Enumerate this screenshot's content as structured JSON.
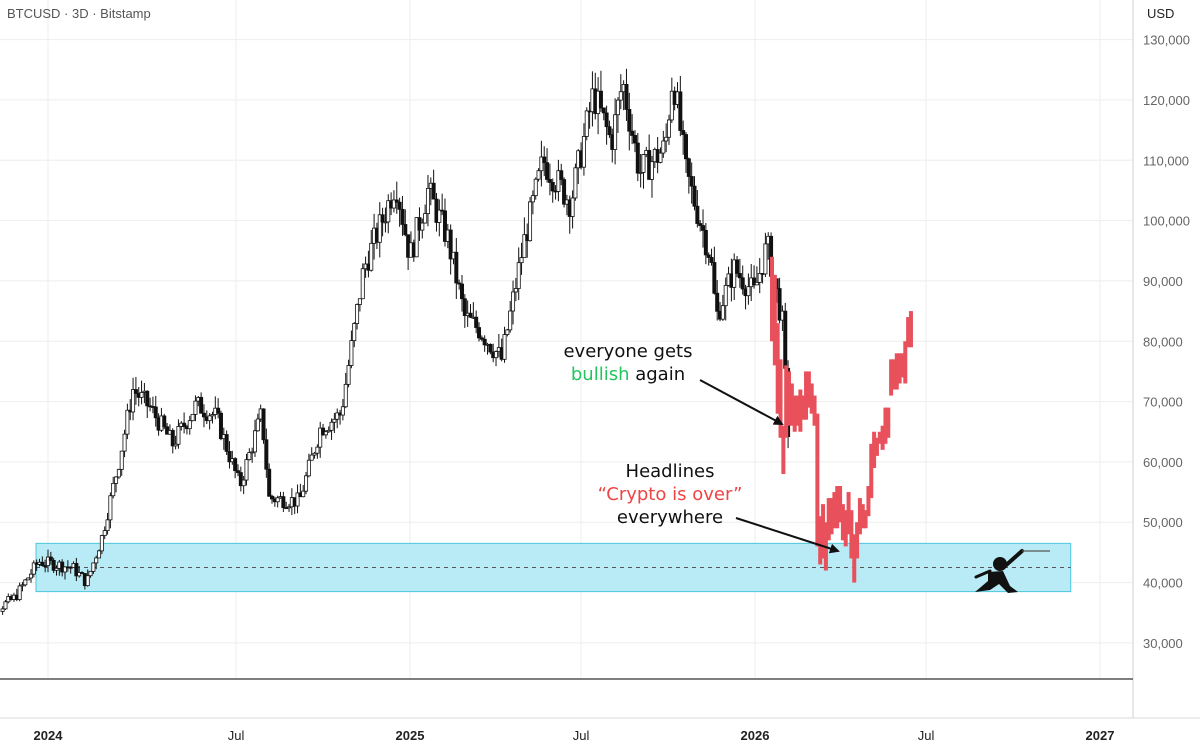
{
  "header": {
    "symbol": "BTCUSD · 3D · Bitstamp",
    "currency": "USD"
  },
  "annotations": {
    "bullish": {
      "line1": "everyone gets",
      "highlight": "bullish",
      "rest": " again"
    },
    "headlines": {
      "line1": "Headlines",
      "highlight": "“Crypto is over”",
      "line3": "everywhere"
    }
  },
  "colors": {
    "historical": "#111111",
    "projected": "#e8505b",
    "zone_fill": "#b8ebf5",
    "zone_border": "#4cc8dc"
  },
  "chart_data": {
    "type": "bar",
    "title": "",
    "xlabel": "",
    "ylabel": "",
    "ylim": [
      24000,
      133000
    ],
    "y_ticks": [
      30000,
      40000,
      50000,
      60000,
      70000,
      80000,
      90000,
      100000,
      110000,
      120000,
      130000
    ],
    "y_tick_labels": [
      "30,000",
      "40,000",
      "50,000",
      "60,000",
      "70,000",
      "80,000",
      "90,000",
      "100,000",
      "110,000",
      "120,000",
      "130,000"
    ],
    "x_ticks": [
      "2023-12-15",
      "2024-07-01",
      "2025-01-01",
      "2025-07-01",
      "2026-01-01",
      "2026-07-01",
      "2027-01-01"
    ],
    "x_tick_labels": [
      "2024",
      "Jul",
      "2025",
      "Jul",
      "2026",
      "Jul",
      "2027"
    ],
    "support_zone": {
      "from": "2023-12-01",
      "to": "2026-12-01",
      "low": 38500,
      "high": 46500,
      "mid": 42500
    },
    "series": [
      {
        "role": "historical",
        "price_path": [
          [
            "2023-10-01",
            33500
          ],
          [
            "2023-11-10",
            37500
          ],
          [
            "2023-12-05",
            43500
          ],
          [
            "2024-01-10",
            42500
          ],
          [
            "2024-01-25",
            40000
          ],
          [
            "2024-02-10",
            47500
          ],
          [
            "2024-02-28",
            60000
          ],
          [
            "2024-03-14",
            72000
          ],
          [
            "2024-04-01",
            69000
          ],
          [
            "2024-04-25",
            63000
          ],
          [
            "2024-05-20",
            69500
          ],
          [
            "2024-06-10",
            67500
          ],
          [
            "2024-07-05",
            56000
          ],
          [
            "2024-07-28",
            68000
          ],
          [
            "2024-08-05",
            54000
          ],
          [
            "2024-09-06",
            53500
          ],
          [
            "2024-09-28",
            65500
          ],
          [
            "2024-10-20",
            68000
          ],
          [
            "2024-11-13",
            92000
          ],
          [
            "2024-12-05",
            101000
          ],
          [
            "2024-12-17",
            106500
          ],
          [
            "2025-01-01",
            94000
          ],
          [
            "2025-01-20",
            105000
          ],
          [
            "2025-02-10",
            97000
          ],
          [
            "2025-02-28",
            84000
          ],
          [
            "2025-03-15",
            82000
          ],
          [
            "2025-04-08",
            77000
          ],
          [
            "2025-05-01",
            96000
          ],
          [
            "2025-05-22",
            110000
          ],
          [
            "2025-06-20",
            103000
          ],
          [
            "2025-07-14",
            121000
          ],
          [
            "2025-08-02",
            113000
          ],
          [
            "2025-08-14",
            123000
          ],
          [
            "2025-09-01",
            108000
          ],
          [
            "2025-09-28",
            112000
          ],
          [
            "2025-10-06",
            124500
          ],
          [
            "2025-10-20",
            108000
          ],
          [
            "2025-11-15",
            94000
          ],
          [
            "2025-11-21",
            84000
          ],
          [
            "2025-12-10",
            92000
          ],
          [
            "2025-12-31",
            88000
          ],
          [
            "2026-01-14",
            96000
          ],
          [
            "2026-01-30",
            83000
          ],
          [
            "2026-02-06",
            62000
          ]
        ]
      },
      {
        "role": "projected",
        "bars": [
          [
            "2026-01-19",
            94000,
            80000
          ],
          [
            "2026-01-22",
            91000,
            76000
          ],
          [
            "2026-01-25",
            83000,
            68000
          ],
          [
            "2026-01-28",
            77000,
            64000
          ],
          [
            "2026-01-31",
            66000,
            58000
          ],
          [
            "2026-02-03",
            76000,
            64000
          ],
          [
            "2026-02-06",
            75000,
            66000
          ],
          [
            "2026-02-09",
            73000,
            66000
          ],
          [
            "2026-02-12",
            71000,
            65000
          ],
          [
            "2026-02-15",
            71000,
            66000
          ],
          [
            "2026-02-18",
            72000,
            65000
          ],
          [
            "2026-02-21",
            71000,
            67000
          ],
          [
            "2026-02-24",
            75000,
            67000
          ],
          [
            "2026-02-27",
            75000,
            69000
          ],
          [
            "2026-03-02",
            73000,
            68000
          ],
          [
            "2026-03-05",
            71000,
            66000
          ],
          [
            "2026-03-08",
            68000,
            46000
          ],
          [
            "2026-03-11",
            51000,
            43000
          ],
          [
            "2026-03-14",
            53000,
            44000
          ],
          [
            "2026-03-17",
            50000,
            42000
          ],
          [
            "2026-03-20",
            54000,
            47000
          ],
          [
            "2026-03-23",
            54000,
            48000
          ],
          [
            "2026-03-26",
            55000,
            49000
          ],
          [
            "2026-03-29",
            56000,
            49000
          ],
          [
            "2026-04-01",
            56000,
            50000
          ],
          [
            "2026-04-04",
            53000,
            47000
          ],
          [
            "2026-04-07",
            52000,
            46000
          ],
          [
            "2026-04-10",
            55000,
            48000
          ],
          [
            "2026-04-13",
            52000,
            44000
          ],
          [
            "2026-04-16",
            48000,
            40000
          ],
          [
            "2026-04-19",
            50000,
            44000
          ],
          [
            "2026-04-22",
            54000,
            48000
          ],
          [
            "2026-04-25",
            53000,
            49000
          ],
          [
            "2026-04-28",
            52000,
            49000
          ],
          [
            "2026-05-01",
            56000,
            51000
          ],
          [
            "2026-05-04",
            63000,
            54000
          ],
          [
            "2026-05-07",
            65000,
            59000
          ],
          [
            "2026-05-10",
            64000,
            61000
          ],
          [
            "2026-05-13",
            65000,
            63000
          ],
          [
            "2026-05-16",
            66000,
            62000
          ],
          [
            "2026-05-19",
            69000,
            63000
          ],
          [
            "2026-05-22",
            69000,
            64000
          ],
          [
            "2026-05-25",
            77000,
            71000
          ],
          [
            "2026-05-28",
            77000,
            72000
          ],
          [
            "2026-05-31",
            78000,
            72000
          ],
          [
            "2026-06-03",
            78000,
            73000
          ],
          [
            "2026-06-06",
            78000,
            74000
          ],
          [
            "2026-06-09",
            80000,
            73000
          ],
          [
            "2026-06-12",
            84000,
            79000
          ],
          [
            "2026-06-15",
            85000,
            79000
          ]
        ]
      }
    ]
  }
}
